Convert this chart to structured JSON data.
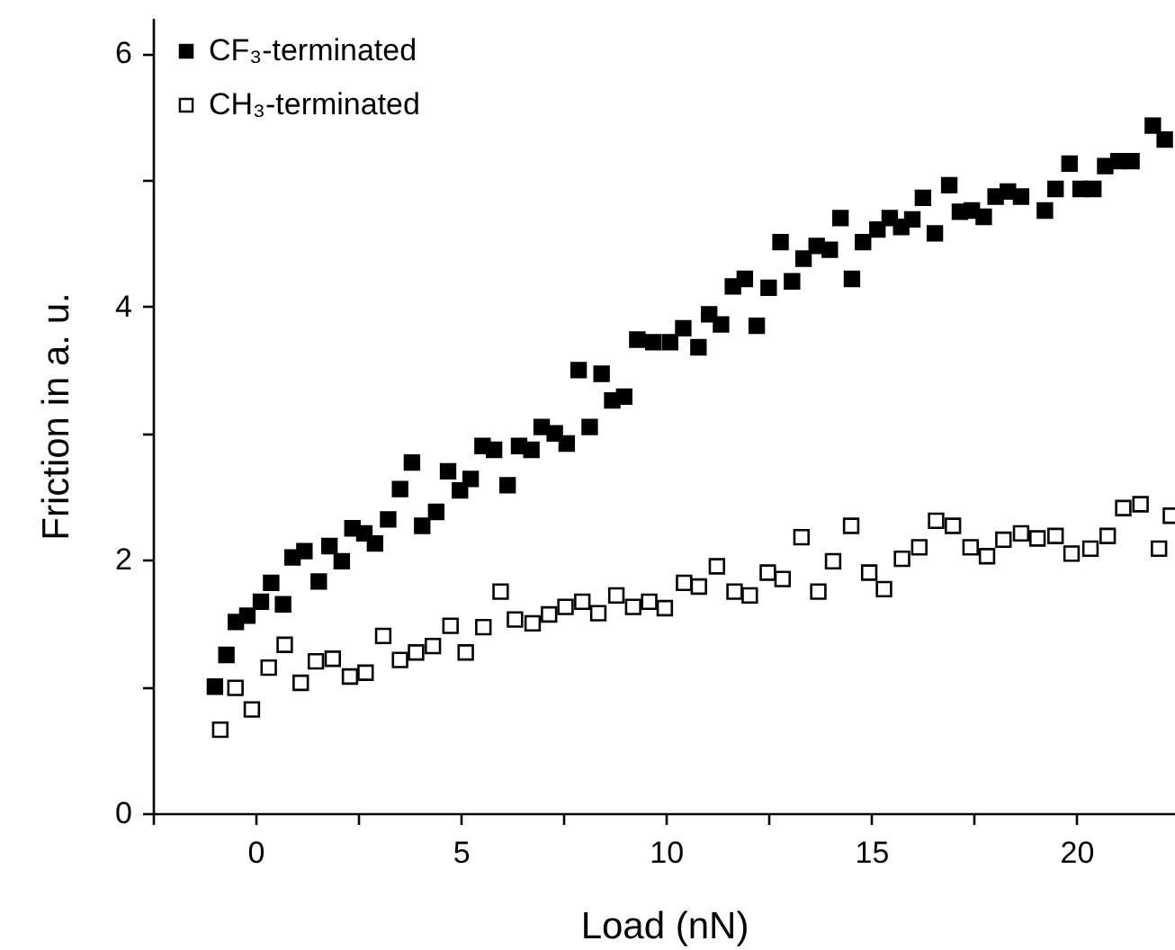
{
  "chart_data": {
    "type": "scatter",
    "xlabel": "Load (nN)",
    "ylabel": "Friction in a. u.",
    "xlim": [
      -2.5,
      22.4
    ],
    "xticks": [
      {
        "value": -2.5,
        "label": null
      },
      0,
      {
        "value": 2.5,
        "label": null
      },
      5,
      {
        "value": 7.5,
        "label": null
      },
      10,
      {
        "value": 12.5,
        "label": null
      },
      15,
      {
        "value": 17.5,
        "label": null
      },
      20
    ],
    "ylim": [
      0,
      6.28
    ],
    "yticks": [
      0,
      {
        "value": 1,
        "label": null
      },
      2,
      {
        "value": 3,
        "label": null
      },
      4,
      {
        "value": 5,
        "label": null
      },
      6
    ],
    "grid": false,
    "legend": "top left",
    "marker": "square",
    "series": [
      {
        "name": "CF₃-terminated",
        "color": "#000000",
        "x": [
          -0.99,
          -0.71,
          -0.48,
          -0.2,
          0.13,
          0.38,
          0.67,
          0.9,
          1.19,
          1.54,
          1.8,
          2.1,
          2.36,
          2.65,
          2.91,
          3.23,
          3.52,
          3.81,
          4.06,
          4.4,
          4.69,
          4.98,
          5.24,
          5.53,
          5.81,
          6.14,
          6.42,
          6.72,
          6.97,
          7.29,
          7.58,
          7.87,
          8.14,
          8.43,
          8.69,
          8.98,
          9.3,
          9.69,
          10.1,
          10.42,
          10.79,
          11.05,
          11.34,
          11.63,
          11.92,
          12.21,
          12.5,
          12.79,
          13.07,
          13.35,
          13.67,
          13.99,
          14.25,
          14.53,
          14.8,
          15.15,
          15.45,
          15.73,
          16.0,
          16.26,
          16.55,
          16.9,
          17.16,
          17.45,
          17.74,
          18.03,
          18.33,
          18.65,
          19.23,
          19.49,
          19.83,
          20.1,
          20.41,
          20.7,
          21.02,
          21.34,
          21.86,
          22.15
        ],
        "values": [
          1.0,
          1.25,
          1.51,
          1.56,
          1.67,
          1.82,
          1.65,
          2.02,
          2.07,
          1.83,
          2.11,
          1.99,
          2.25,
          2.21,
          2.13,
          2.32,
          2.56,
          2.77,
          2.27,
          2.38,
          2.7,
          2.55,
          2.64,
          2.9,
          2.87,
          2.59,
          2.9,
          2.87,
          3.05,
          3.0,
          2.92,
          3.5,
          3.05,
          3.47,
          3.26,
          3.29,
          3.74,
          3.72,
          3.72,
          3.83,
          3.68,
          3.94,
          3.86,
          4.16,
          4.22,
          3.85,
          4.15,
          4.51,
          4.2,
          4.38,
          4.48,
          4.45,
          4.7,
          4.22,
          4.51,
          4.61,
          4.7,
          4.63,
          4.69,
          4.86,
          4.58,
          4.96,
          4.75,
          4.76,
          4.71,
          4.87,
          4.91,
          4.87,
          4.76,
          4.93,
          5.13,
          4.93,
          4.93,
          5.11,
          5.15,
          5.15,
          5.43,
          5.32
        ]
      },
      {
        "name": "CH₃-terminated",
        "color": "#ffffff",
        "x": [
          -0.86,
          -0.49,
          -0.09,
          0.32,
          0.71,
          1.1,
          1.47,
          1.88,
          2.3,
          2.68,
          3.11,
          3.52,
          3.91,
          4.32,
          4.75,
          5.12,
          5.55,
          5.97,
          6.32,
          6.75,
          7.15,
          7.55,
          7.96,
          8.35,
          8.79,
          9.2,
          9.59,
          9.97,
          10.44,
          10.8,
          11.24,
          11.67,
          12.04,
          12.48,
          12.84,
          13.3,
          13.71,
          14.07,
          14.51,
          14.95,
          15.31,
          15.75,
          16.17,
          16.58,
          16.99,
          17.42,
          17.82,
          18.22,
          18.65,
          19.05,
          19.49,
          19.88,
          20.34,
          20.76,
          21.14,
          21.56,
          22.01,
          22.3
        ],
        "values": [
          0.66,
          0.99,
          0.82,
          1.15,
          1.33,
          1.03,
          1.2,
          1.22,
          1.08,
          1.11,
          1.4,
          1.21,
          1.27,
          1.32,
          1.48,
          1.27,
          1.47,
          1.75,
          1.53,
          1.5,
          1.57,
          1.63,
          1.67,
          1.58,
          1.72,
          1.63,
          1.67,
          1.62,
          1.82,
          1.79,
          1.95,
          1.75,
          1.72,
          1.9,
          1.85,
          2.18,
          1.75,
          1.99,
          2.27,
          1.9,
          1.77,
          2.01,
          2.1,
          2.31,
          2.27,
          2.1,
          2.03,
          2.16,
          2.21,
          2.17,
          2.19,
          2.05,
          2.09,
          2.19,
          2.41,
          2.44,
          2.09,
          2.35
        ]
      }
    ]
  }
}
